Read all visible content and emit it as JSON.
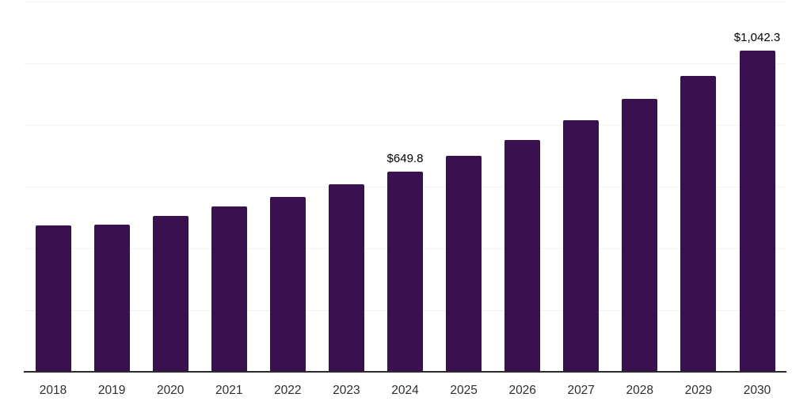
{
  "chart_data": {
    "type": "bar",
    "title": "",
    "xlabel": "",
    "ylabel": "",
    "categories": [
      "2018",
      "2019",
      "2020",
      "2021",
      "2022",
      "2023",
      "2024",
      "2025",
      "2026",
      "2027",
      "2028",
      "2029",
      "2030"
    ],
    "values": [
      474,
      476,
      506,
      535,
      566,
      607,
      649.8,
      699,
      751,
      815,
      885,
      960,
      1042.3
    ],
    "value_labels": [
      {
        "category": "2024",
        "text": "$649.8"
      },
      {
        "category": "2030",
        "text": "$1,042.3"
      }
    ],
    "ylim": [
      0,
      1200
    ],
    "grid_step": 200,
    "grid": "horizontal-only",
    "legend": "none",
    "colors": {
      "bar": "#38114E",
      "gridline": "#f2f2f2",
      "axis_line": "#2b2b2b",
      "tick_label": "#2e2e2e",
      "data_label": "#000000",
      "background": "#ffffff"
    }
  }
}
